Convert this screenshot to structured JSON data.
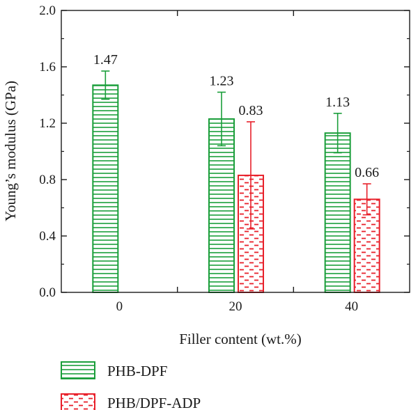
{
  "chart_data": {
    "type": "bar",
    "title": "",
    "xlabel": "Filler content (wt.%)",
    "ylabel": "Young’s modulus (GPa)",
    "categories": [
      "0",
      "20",
      "40"
    ],
    "ylim": [
      0,
      2.0
    ],
    "yticks": [
      "0.0",
      "0.4",
      "0.8",
      "1.2",
      "1.6",
      "2.0"
    ],
    "grid": false,
    "legend_position": "bottom",
    "series": [
      {
        "name": "PHB-DPF",
        "color": "#1a9e3a",
        "pattern": "horizontal-lines",
        "values": [
          1.47,
          1.23,
          1.13
        ],
        "errors": [
          0.1,
          0.19,
          0.14
        ],
        "labels": [
          "1.47",
          "1.23",
          "1.13"
        ]
      },
      {
        "name": "PHB/DPF-ADP",
        "color": "#e8202a",
        "pattern": "dashed-lines",
        "values": [
          null,
          0.83,
          0.66
        ],
        "errors": [
          null,
          0.38,
          0.11
        ],
        "labels": [
          "",
          "0.83",
          "0.66"
        ]
      }
    ]
  }
}
